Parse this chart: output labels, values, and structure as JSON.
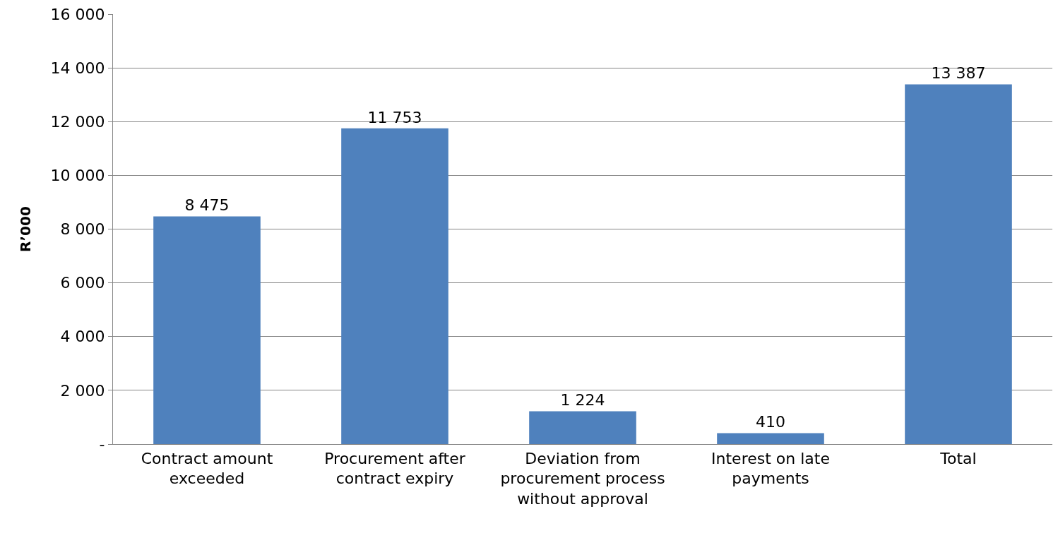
{
  "chart_data": {
    "type": "bar",
    "ylabel": "R’000",
    "categories": [
      "Contract amount exceeded",
      "Procurement after contract expiry",
      "Deviation from procurement process without approval",
      "Interest on late payments",
      "Total"
    ],
    "series": [
      {
        "color": "#4f81bd",
        "values": [
          8475,
          11753,
          1224,
          410,
          13387
        ],
        "value_labels": [
          "8 475",
          "11 753",
          "1 224",
          "410",
          "13 387"
        ]
      }
    ],
    "ylim": [
      0,
      16000
    ],
    "yticks": [
      {
        "value": 0,
        "label": "-"
      },
      {
        "value": 2000,
        "label": "2 000"
      },
      {
        "value": 4000,
        "label": "4 000"
      },
      {
        "value": 6000,
        "label": "6 000"
      },
      {
        "value": 8000,
        "label": "8 000"
      },
      {
        "value": 10000,
        "label": "10 000"
      },
      {
        "value": 12000,
        "label": "12 000"
      },
      {
        "value": 14000,
        "label": "14 000"
      },
      {
        "value": 16000,
        "label": "16 000"
      }
    ],
    "grid": "y",
    "legend": false
  }
}
